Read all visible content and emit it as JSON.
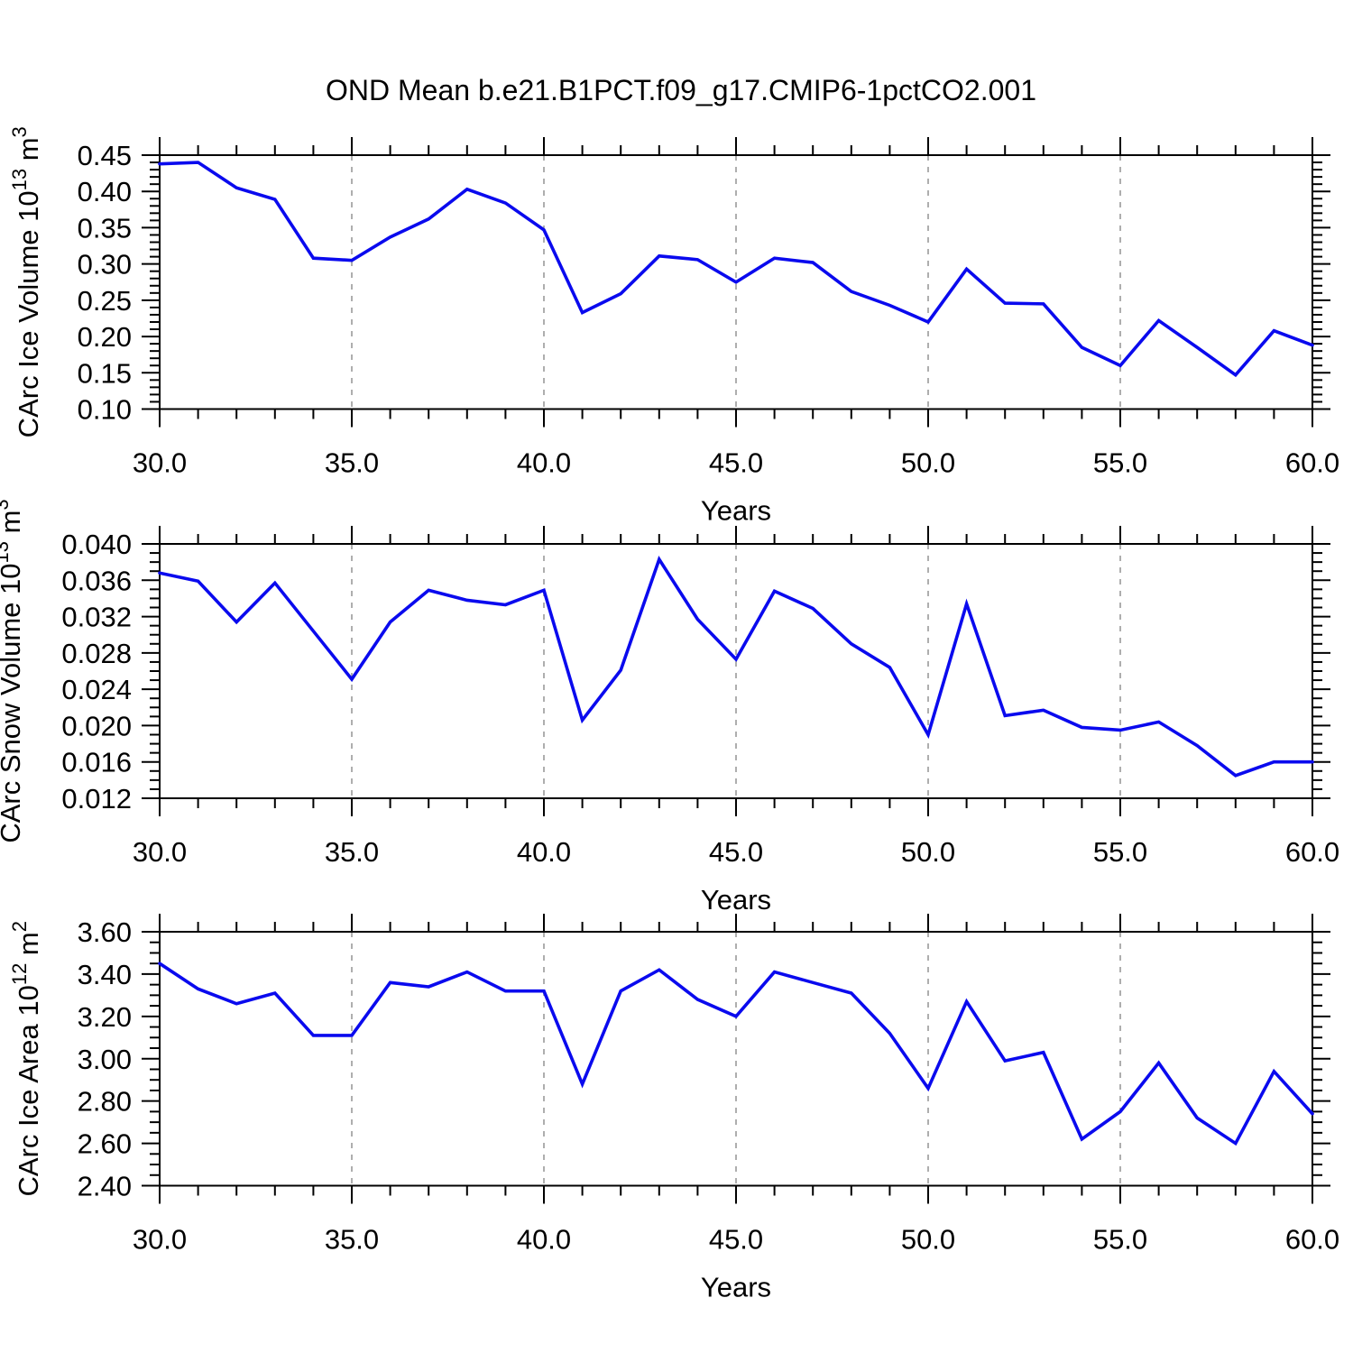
{
  "title": "OND Mean b.e21.B1PCT.f09_g17.CMIP6-1pctCO2.001",
  "style": {
    "line_color": "#0a0aee",
    "grid_color": "#9a9a9a",
    "axis_color": "#000000",
    "text_color": "#000000",
    "background": "#ffffff"
  },
  "x_axis": {
    "label": "Years",
    "range": [
      30,
      60
    ],
    "major_ticks": [
      30,
      35,
      40,
      45,
      50,
      55,
      60
    ],
    "major_tick_labels": [
      "30.0",
      "35.0",
      "40.0",
      "45.0",
      "50.0",
      "55.0",
      "60.0"
    ],
    "minor_tick_step": 1,
    "gridline_years": [
      35,
      40,
      45,
      50,
      55
    ]
  },
  "years": [
    30,
    31,
    32,
    33,
    34,
    35,
    36,
    37,
    38,
    39,
    40,
    41,
    42,
    43,
    44,
    45,
    46,
    47,
    48,
    49,
    50,
    51,
    52,
    53,
    54,
    55,
    56,
    57,
    58,
    59,
    60
  ],
  "chart_data": [
    {
      "type": "line",
      "name": "CArc Ice Volume",
      "ylabel_parts": [
        [
          "CArc Ice Volume 10",
          false
        ],
        [
          "13",
          true
        ],
        [
          " m",
          false
        ],
        [
          "3",
          true
        ]
      ],
      "ylim": [
        0.1,
        0.45
      ],
      "yticks": [
        0.45,
        0.4,
        0.35,
        0.3,
        0.25,
        0.2,
        0.15,
        0.1
      ],
      "ytick_labels": [
        "0.45",
        "0.40",
        "0.35",
        "0.30",
        "0.25",
        "0.20",
        "0.15",
        "0.10"
      ],
      "y_minor_step": 0.01,
      "xlabel": "Years",
      "values": [
        0.438,
        0.44,
        0.405,
        0.389,
        0.308,
        0.305,
        0.337,
        0.362,
        0.403,
        0.384,
        0.347,
        0.233,
        0.259,
        0.311,
        0.306,
        0.275,
        0.308,
        0.302,
        0.262,
        0.243,
        0.22,
        0.293,
        0.246,
        0.245,
        0.185,
        0.16,
        0.222,
        0.185,
        0.147,
        0.208,
        0.188
      ]
    },
    {
      "type": "line",
      "name": "CArc Snow Volume",
      "ylabel_parts": [
        [
          "CArc Snow Volume 10",
          false
        ],
        [
          "13",
          true
        ],
        [
          " m",
          false
        ],
        [
          "3",
          true
        ]
      ],
      "ylim": [
        0.012,
        0.04
      ],
      "yticks": [
        0.04,
        0.036,
        0.032,
        0.028,
        0.024,
        0.02,
        0.016,
        0.012
      ],
      "ytick_labels": [
        "0.040",
        "0.036",
        "0.032",
        "0.028",
        "0.024",
        "0.020",
        "0.016",
        "0.012"
      ],
      "y_minor_step": 0.001,
      "xlabel": "Years",
      "values": [
        0.0368,
        0.0359,
        0.0314,
        0.0357,
        0.0304,
        0.0251,
        0.0314,
        0.0349,
        0.0338,
        0.0333,
        0.0349,
        0.0206,
        0.0261,
        0.0383,
        0.0317,
        0.0273,
        0.0348,
        0.0329,
        0.029,
        0.0264,
        0.019,
        0.0334,
        0.0211,
        0.0217,
        0.0198,
        0.0195,
        0.0204,
        0.0178,
        0.0145,
        0.016,
        0.016
      ]
    },
    {
      "type": "line",
      "name": "CArc Ice Area",
      "ylabel_parts": [
        [
          "CArc Ice Area 10",
          false
        ],
        [
          "12",
          true
        ],
        [
          " m",
          false
        ],
        [
          "2",
          true
        ]
      ],
      "ylim": [
        2.4,
        3.6
      ],
      "yticks": [
        3.6,
        3.4,
        3.2,
        3.0,
        2.8,
        2.6,
        2.4
      ],
      "ytick_labels": [
        "3.60",
        "3.40",
        "3.20",
        "3.00",
        "2.80",
        "2.60",
        "2.40"
      ],
      "y_minor_step": 0.05,
      "xlabel": "Years",
      "values": [
        3.45,
        3.33,
        3.26,
        3.31,
        3.11,
        3.11,
        3.36,
        3.34,
        3.41,
        3.32,
        3.32,
        2.88,
        3.32,
        3.42,
        3.28,
        3.2,
        3.41,
        3.36,
        3.31,
        3.12,
        2.86,
        3.27,
        2.99,
        3.03,
        2.62,
        2.75,
        2.98,
        2.72,
        2.6,
        2.94,
        2.74
      ]
    }
  ]
}
